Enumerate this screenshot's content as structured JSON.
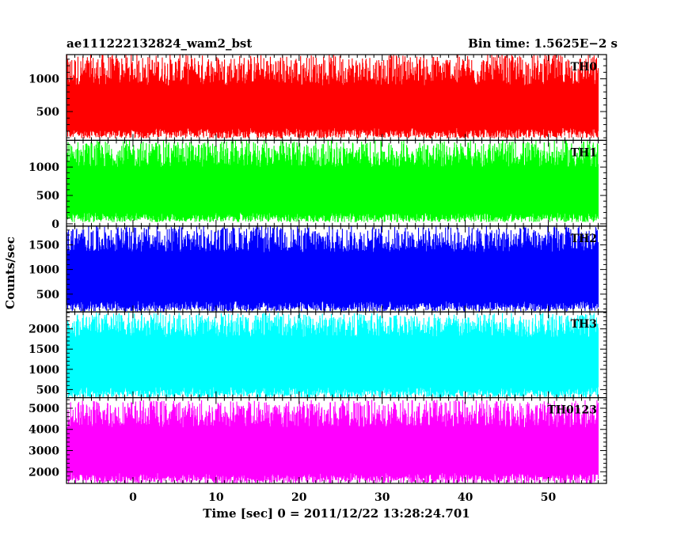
{
  "chart_data": {
    "type": "line",
    "title_left": "ae111222132824_wam2_bst",
    "title_right": "Bin time: 1.5625E−2 s",
    "xlabel": "Time [sec] 0 = 2011/12/22 13:28:24.701",
    "ylabel": "Counts/sec",
    "xlim": [
      -8,
      57
    ],
    "x_data_range": [
      -8,
      56
    ],
    "xticks": [
      0,
      10,
      20,
      30,
      40,
      50
    ],
    "grid": false,
    "panels": [
      {
        "name": "TH0",
        "color": "#ff0000",
        "ylim": [
          60,
          1370
        ],
        "yticks": [
          500,
          1000
        ],
        "mean": 590,
        "envelope_low": [
          90,
          250
        ],
        "envelope_high": [
          900,
          1380
        ]
      },
      {
        "name": "TH1",
        "color": "#00ff00",
        "ylim": [
          -40,
          1470
        ],
        "yticks": [
          0,
          500,
          1000
        ],
        "mean": 660,
        "envelope_low": [
          30,
          200
        ],
        "envelope_high": [
          1000,
          1470
        ]
      },
      {
        "name": "TH2",
        "color": "#0000ff",
        "ylim": [
          140,
          1880
        ],
        "yticks": [
          500,
          1000,
          1500
        ],
        "mean": 880,
        "envelope_low": [
          150,
          360
        ],
        "envelope_high": [
          1350,
          1880
        ]
      },
      {
        "name": "TH3",
        "color": "#00ffff",
        "ylim": [
          300,
          2420
        ],
        "yticks": [
          500,
          1000,
          1500,
          2000
        ],
        "mean": 1150,
        "envelope_low": [
          300,
          560
        ],
        "envelope_high": [
          1800,
          2400
        ]
      },
      {
        "name": "TH0123",
        "color": "#ff00ff",
        "ylim": [
          1450,
          5500
        ],
        "yticks": [
          2000,
          3000,
          4000,
          5000
        ],
        "mean": 2950,
        "envelope_low": [
          1450,
          1950
        ],
        "envelope_high": [
          4100,
          5400
        ]
      }
    ]
  }
}
